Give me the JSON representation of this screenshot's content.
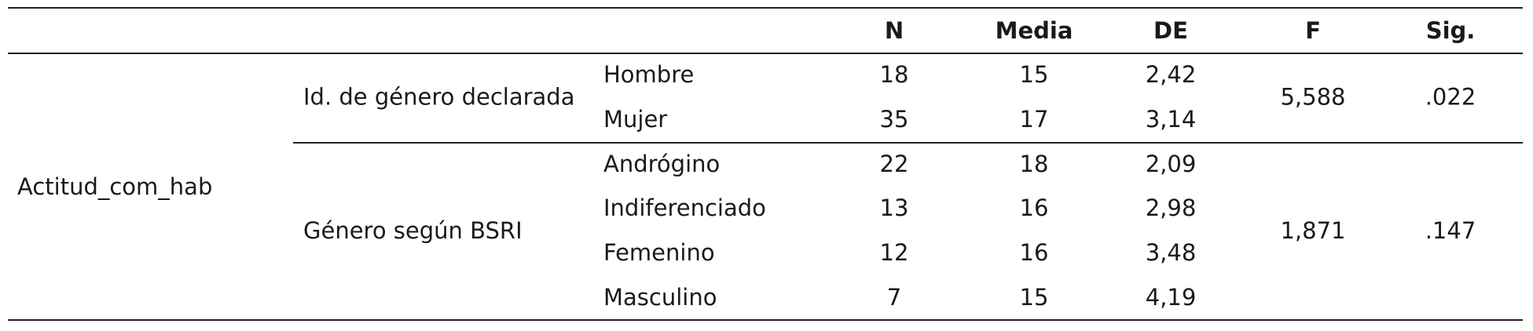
{
  "header": {
    "columns": [
      "N",
      "Media",
      "DE",
      "F",
      "Sig."
    ]
  },
  "variable": "Actitud_com_hab",
  "groups": [
    {
      "label": "Id. de género declarada",
      "F": "5,588",
      "sig": ".022",
      "rows": [
        {
          "category": "Hombre",
          "n": "18",
          "media": "15",
          "de": "2,42"
        },
        {
          "category": "Mujer",
          "n": "35",
          "media": "17",
          "de": "3,14"
        }
      ]
    },
    {
      "label": "Género según BSRI",
      "F": "1,871",
      "sig": ".147",
      "rows": [
        {
          "category": "Andrógino",
          "n": "22",
          "media": "18",
          "de": "2,09"
        },
        {
          "category": "Indiferenciado",
          "n": "13",
          "media": "16",
          "de": "2,98"
        },
        {
          "category": "Femenino",
          "n": "12",
          "media": "16",
          "de": "3,48"
        },
        {
          "category": "Masculino",
          "n": "7",
          "media": "15",
          "de": "4,19"
        }
      ]
    }
  ]
}
